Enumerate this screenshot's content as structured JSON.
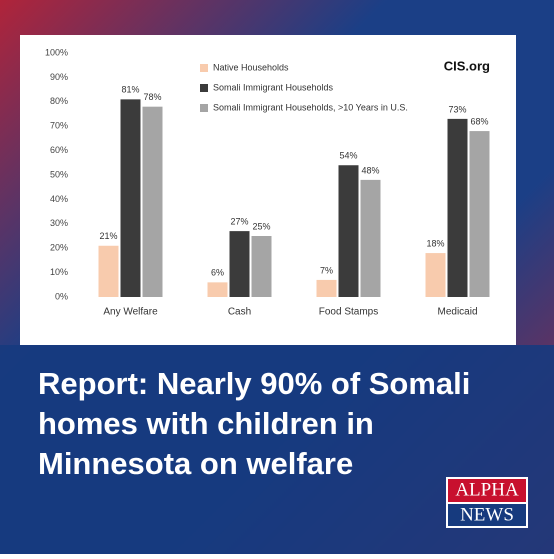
{
  "chart_data": {
    "type": "bar",
    "source": "CIS.org",
    "categories": [
      "Any Welfare",
      "Cash",
      "Food Stamps",
      "Medicaid"
    ],
    "series": [
      {
        "name": "Native Households",
        "color": "#f8cbad",
        "values": [
          21,
          6,
          7,
          18
        ],
        "value_labels": [
          "21%",
          "6%",
          "7%",
          "18%"
        ]
      },
      {
        "name": "Somali Immigrant Households",
        "color": "#3b3b3b",
        "values": [
          81,
          27,
          54,
          73
        ],
        "value_labels": [
          "81%",
          "27%",
          "54%",
          "73%"
        ]
      },
      {
        "name": "Somali Immigrant Households, >10 Years in U.S.",
        "color": "#a5a5a5",
        "values": [
          78,
          25,
          48,
          68
        ],
        "value_labels": [
          "78%",
          "25%",
          "48%",
          "68%"
        ]
      }
    ],
    "ylim": [
      0,
      100
    ],
    "yticks": [
      {
        "value": 0,
        "label": "0%"
      },
      {
        "value": 10,
        "label": "10%"
      },
      {
        "value": 20,
        "label": "20%"
      },
      {
        "value": 30,
        "label": "30%"
      },
      {
        "value": 40,
        "label": "40%"
      },
      {
        "value": 50,
        "label": "50%"
      },
      {
        "value": 60,
        "label": "60%"
      },
      {
        "value": 70,
        "label": "70%"
      },
      {
        "value": 80,
        "label": "80%"
      },
      {
        "value": 90,
        "label": "90%"
      },
      {
        "value": 100,
        "label": "100%"
      }
    ]
  },
  "headline": [
    "Report: Nearly 90% of Somali",
    "homes with children in",
    "Minnesota on welfare"
  ],
  "brand": {
    "top": "ALPHA",
    "bottom": "NEWS"
  }
}
